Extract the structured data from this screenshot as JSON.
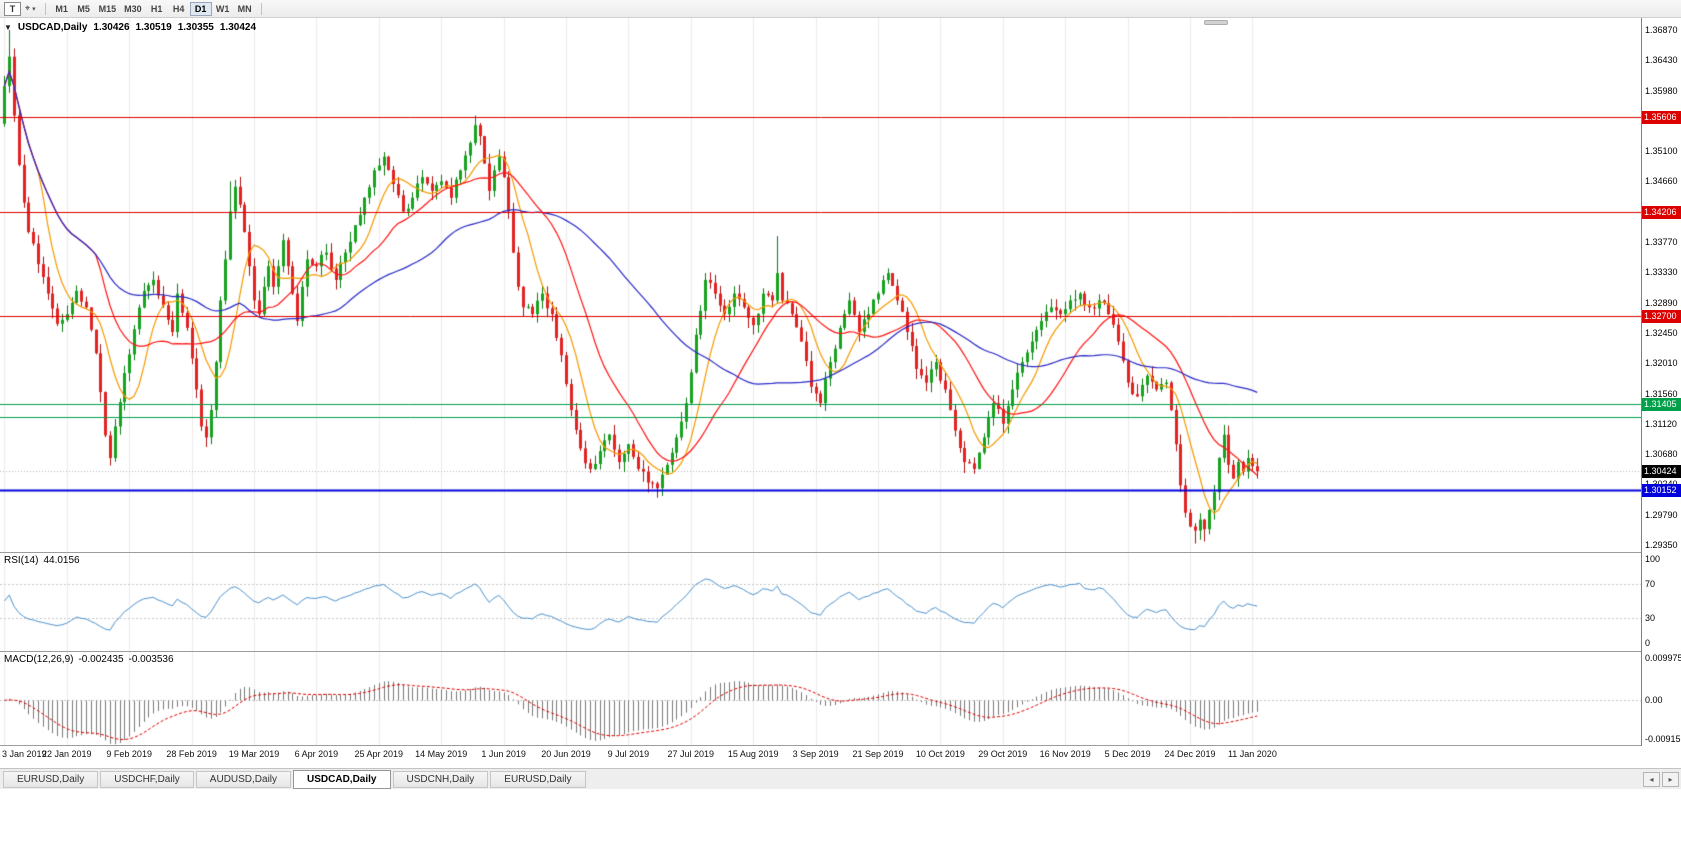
{
  "toolbar": {
    "text_tool_label": "T",
    "timeframes": [
      "M1",
      "M5",
      "M15",
      "M30",
      "H1",
      "H4",
      "D1",
      "W1",
      "MN"
    ],
    "active_timeframe": "D1"
  },
  "icons": {
    "one_click_arrow": "▼",
    "crosshair": "⌖",
    "tool_caret": "▾",
    "tab_scroll_left": "◂",
    "tab_scroll_right": "▸"
  },
  "symbol_header": {
    "symbol": "USDCAD,Daily",
    "open": "1.30426",
    "high": "1.30519",
    "low": "1.30355",
    "close": "1.30424"
  },
  "chart_data": {
    "type": "candlestick",
    "symbol": "USDCAD",
    "timeframe": "Daily",
    "candles_total": 262,
    "ylim": [
      1.29247,
      1.37045
    ],
    "y_ticks": [
      "1.36870",
      "1.36430",
      "1.35980",
      "1.35540",
      "1.35100",
      "1.34660",
      "1.34210",
      "1.33770",
      "1.33330",
      "1.32890",
      "1.32450",
      "1.32010",
      "1.31560",
      "1.31120",
      "1.30680",
      "1.30240",
      "1.29790",
      "1.29350"
    ],
    "x_ticks": [
      {
        "i": 0,
        "label": "3 Jan 2019"
      },
      {
        "i": 13,
        "label": "22 Jan 2019"
      },
      {
        "i": 26,
        "label": "9 Feb 2019"
      },
      {
        "i": 39,
        "label": "28 Feb 2019"
      },
      {
        "i": 52,
        "label": "19 Mar 2019"
      },
      {
        "i": 65,
        "label": "6 Apr 2019"
      },
      {
        "i": 78,
        "label": "25 Apr 2019"
      },
      {
        "i": 91,
        "label": "14 May 2019"
      },
      {
        "i": 104,
        "label": "1 Jun 2019"
      },
      {
        "i": 117,
        "label": "20 Jun 2019"
      },
      {
        "i": 130,
        "label": "9 Jul 2019"
      },
      {
        "i": 143,
        "label": "27 Jul 2019"
      },
      {
        "i": 156,
        "label": "15 Aug 2019"
      },
      {
        "i": 169,
        "label": "3 Sep 2019"
      },
      {
        "i": 182,
        "label": "21 Sep 2019"
      },
      {
        "i": 195,
        "label": "10 Oct 2019"
      },
      {
        "i": 208,
        "label": "29 Oct 2019"
      },
      {
        "i": 221,
        "label": "16 Nov 2019"
      },
      {
        "i": 234,
        "label": "5 Dec 2019"
      },
      {
        "i": 247,
        "label": "24 Dec 2019"
      },
      {
        "i": 260,
        "label": "11 Jan 2020"
      }
    ],
    "close_anchors": [
      [
        0,
        1.3605
      ],
      [
        1,
        1.3648
      ],
      [
        3,
        1.349
      ],
      [
        5,
        1.3392
      ],
      [
        7,
        1.3345
      ],
      [
        9,
        1.3302
      ],
      [
        11,
        1.3258
      ],
      [
        13,
        1.3272
      ],
      [
        15,
        1.3306
      ],
      [
        17,
        1.3282
      ],
      [
        19,
        1.3215
      ],
      [
        21,
        1.3095
      ],
      [
        22,
        1.3062
      ],
      [
        23,
        1.3108
      ],
      [
        25,
        1.3186
      ],
      [
        27,
        1.325
      ],
      [
        29,
        1.3306
      ],
      [
        31,
        1.3322
      ],
      [
        33,
        1.3285
      ],
      [
        35,
        1.3246
      ],
      [
        36,
        1.3302
      ],
      [
        38,
        1.3252
      ],
      [
        40,
        1.3162
      ],
      [
        41,
        1.3108
      ],
      [
        42,
        1.3092
      ],
      [
        43,
        1.3132
      ],
      [
        44,
        1.3202
      ],
      [
        45,
        1.3292
      ],
      [
        46,
        1.3352
      ],
      [
        47,
        1.3422
      ],
      [
        48,
        1.3458
      ],
      [
        49,
        1.3432
      ],
      [
        50,
        1.3392
      ],
      [
        51,
        1.3342
      ],
      [
        52,
        1.3292
      ],
      [
        53,
        1.3272
      ],
      [
        54,
        1.3312
      ],
      [
        55,
        1.3342
      ],
      [
        56,
        1.3312
      ],
      [
        57,
        1.3342
      ],
      [
        58,
        1.338
      ],
      [
        59,
        1.3342
      ],
      [
        60,
        1.3302
      ],
      [
        61,
        1.3262
      ],
      [
        62,
        1.3312
      ],
      [
        63,
        1.3352
      ],
      [
        65,
        1.3342
      ],
      [
        67,
        1.3362
      ],
      [
        69,
        1.3322
      ],
      [
        71,
        1.3362
      ],
      [
        73,
        1.3402
      ],
      [
        75,
        1.3442
      ],
      [
        77,
        1.3482
      ],
      [
        79,
        1.3502
      ],
      [
        81,
        1.3462
      ],
      [
        83,
        1.3422
      ],
      [
        85,
        1.3442
      ],
      [
        87,
        1.3472
      ],
      [
        89,
        1.3452
      ],
      [
        91,
        1.3466
      ],
      [
        93,
        1.3442
      ],
      [
        95,
        1.3482
      ],
      [
        97,
        1.3522
      ],
      [
        98,
        1.3548
      ],
      [
        99,
        1.3532
      ],
      [
        100,
        1.3492
      ],
      [
        101,
        1.3452
      ],
      [
        102,
        1.3482
      ],
      [
        103,
        1.3502
      ],
      [
        104,
        1.3472
      ],
      [
        105,
        1.3422
      ],
      [
        106,
        1.3362
      ],
      [
        107,
        1.3312
      ],
      [
        108,
        1.3282
      ],
      [
        110,
        1.3272
      ],
      [
        112,
        1.3302
      ],
      [
        114,
        1.3272
      ],
      [
        116,
        1.3212
      ],
      [
        118,
        1.3132
      ],
      [
        120,
        1.3076
      ],
      [
        122,
        1.3046
      ],
      [
        124,
        1.3072
      ],
      [
        126,
        1.3096
      ],
      [
        128,
        1.3056
      ],
      [
        130,
        1.3082
      ],
      [
        132,
        1.3046
      ],
      [
        134,
        1.3026
      ],
      [
        136,
        1.3018
      ],
      [
        138,
        1.3052
      ],
      [
        140,
        1.3092
      ],
      [
        142,
        1.3142
      ],
      [
        144,
        1.3242
      ],
      [
        146,
        1.3322
      ],
      [
        148,
        1.3302
      ],
      [
        150,
        1.3272
      ],
      [
        152,
        1.3302
      ],
      [
        154,
        1.3282
      ],
      [
        156,
        1.3256
      ],
      [
        158,
        1.3302
      ],
      [
        160,
        1.3292
      ],
      [
        161,
        1.3332
      ],
      [
        162,
        1.3292
      ],
      [
        164,
        1.3272
      ],
      [
        166,
        1.3232
      ],
      [
        168,
        1.3166
      ],
      [
        170,
        1.3142
      ],
      [
        172,
        1.3202
      ],
      [
        174,
        1.3252
      ],
      [
        176,
        1.3292
      ],
      [
        178,
        1.3246
      ],
      [
        180,
        1.3272
      ],
      [
        182,
        1.3302
      ],
      [
        184,
        1.3332
      ],
      [
        186,
        1.3292
      ],
      [
        188,
        1.3246
      ],
      [
        190,
        1.3192
      ],
      [
        192,
        1.3172
      ],
      [
        194,
        1.3202
      ],
      [
        196,
        1.3162
      ],
      [
        198,
        1.3102
      ],
      [
        200,
        1.3056
      ],
      [
        202,
        1.3046
      ],
      [
        204,
        1.3092
      ],
      [
        206,
        1.3142
      ],
      [
        208,
        1.3112
      ],
      [
        210,
        1.3162
      ],
      [
        212,
        1.3202
      ],
      [
        214,
        1.3232
      ],
      [
        216,
        1.3262
      ],
      [
        218,
        1.3282
      ],
      [
        220,
        1.3272
      ],
      [
        222,
        1.3292
      ],
      [
        224,
        1.3302
      ],
      [
        226,
        1.3282
      ],
      [
        228,
        1.3292
      ],
      [
        230,
        1.3272
      ],
      [
        232,
        1.3232
      ],
      [
        234,
        1.3172
      ],
      [
        236,
        1.3152
      ],
      [
        238,
        1.3182
      ],
      [
        240,
        1.3162
      ],
      [
        242,
        1.3172
      ],
      [
        243,
        1.3132
      ],
      [
        244,
        1.3082
      ],
      [
        245,
        1.3022
      ],
      [
        246,
        1.2982
      ],
      [
        247,
        1.2962
      ],
      [
        248,
        1.2956
      ],
      [
        249,
        1.2972
      ],
      [
        250,
        1.2958
      ],
      [
        251,
        1.2986
      ],
      [
        252,
        1.3012
      ],
      [
        253,
        1.3062
      ],
      [
        254,
        1.3096
      ],
      [
        255,
        1.3052
      ],
      [
        256,
        1.3032
      ],
      [
        257,
        1.3056
      ],
      [
        258,
        1.3042
      ],
      [
        259,
        1.3062
      ],
      [
        260,
        1.305
      ],
      [
        261,
        1.30424
      ]
    ],
    "spike_highs": [
      [
        1,
        1.3687
      ],
      [
        47,
        1.3466
      ],
      [
        98,
        1.3562
      ],
      [
        161,
        1.3386
      ],
      [
        254,
        1.3104
      ]
    ],
    "spike_lows": [
      [
        22,
        1.3051
      ],
      [
        136,
        1.3004
      ],
      [
        200,
        1.304
      ],
      [
        248,
        1.2937
      ],
      [
        250,
        1.294
      ]
    ],
    "horizontal_lines": [
      {
        "price": 1.35606,
        "label": "1.35606",
        "color": "#dd0000",
        "badge": true,
        "width": 1
      },
      {
        "price": 1.34206,
        "label": "1.34206",
        "color": "#dd0000",
        "badge": true,
        "width": 1
      },
      {
        "price": 1.327,
        "label": "1.32700",
        "color": "#dd0000",
        "badge": true,
        "width": 1
      },
      {
        "price": 1.31405,
        "label": "1.31405",
        "color": "#00a04a",
        "badge": true,
        "width": 1
      },
      {
        "price": 1.3122,
        "label": "",
        "color": "#00a04a",
        "badge": false,
        "width": 1
      },
      {
        "price": 1.30152,
        "label": "1.30152",
        "color": "#0000dd",
        "badge": true,
        "width": 2
      }
    ],
    "current_price": {
      "value": 1.30424,
      "label": "1.30424",
      "badge_bg": "#000000"
    },
    "moving_averages": [
      {
        "period": 8,
        "color": "#f59a00"
      },
      {
        "period": 20,
        "color": "#ff1313"
      },
      {
        "period": 50,
        "color": "#2a2ac8"
      }
    ],
    "candle_colors": {
      "up_fill": "#17a31f",
      "up_line": "#0b7d14",
      "down_fill": "#e32222",
      "down_line": "#ae1313"
    },
    "indicators": [
      {
        "type": "rsi",
        "name": "RSI(14)",
        "value": "44.0156",
        "period": 14,
        "line_color": "#4f93ce",
        "levels": [
          {
            "label": "100",
            "value": 100
          },
          {
            "label": "70",
            "value": 70
          },
          {
            "label": "30",
            "value": 30
          },
          {
            "label": "0",
            "value": 0
          }
        ]
      },
      {
        "type": "macd",
        "name": "MACD(12,26,9)",
        "value": "-0.002435",
        "signal": "-0.003536",
        "fast": 12,
        "slow": 26,
        "smoothing": 9,
        "hist_color": "#7a7a7a",
        "signal_color": "#e00000",
        "axis": [
          {
            "label": "0.009975",
            "value": 0.009975
          },
          {
            "label": "0.00",
            "value": 0
          },
          {
            "label": "-0.00915",
            "value": -0.00915
          }
        ]
      }
    ]
  },
  "tabs": [
    {
      "label": "EURUSD,Daily",
      "active": false
    },
    {
      "label": "USDCHF,Daily",
      "active": false
    },
    {
      "label": "AUDUSD,Daily",
      "active": false
    },
    {
      "label": "USDCAD,Daily",
      "active": true
    },
    {
      "label": "USDCNH,Daily",
      "active": false
    },
    {
      "label": "EURUSD,Daily",
      "active": false
    }
  ]
}
